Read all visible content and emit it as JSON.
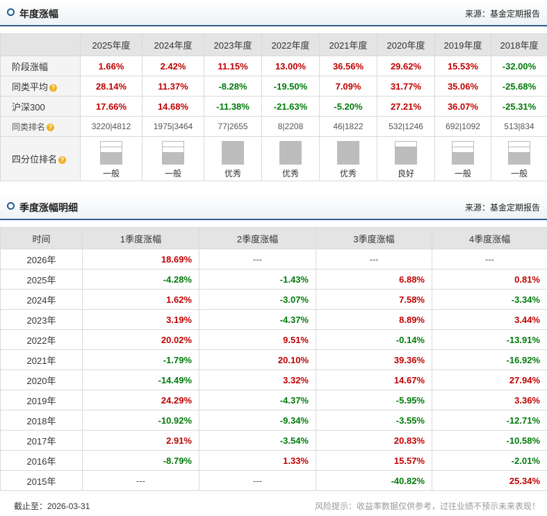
{
  "annual_section": {
    "title": "年度涨幅",
    "source": "来源：基金定期报告"
  },
  "annual": {
    "years": [
      "2025年度",
      "2024年度",
      "2023年度",
      "2022年度",
      "2021年度",
      "2020年度",
      "2019年度",
      "2018年度"
    ],
    "rows": [
      {
        "label": "阶段涨幅",
        "help": false,
        "values": [
          "1.66%",
          "2.42%",
          "11.15%",
          "13.00%",
          "36.56%",
          "29.62%",
          "15.53%",
          "-32.00%"
        ]
      },
      {
        "label": "同类平均",
        "help": true,
        "values": [
          "28.14%",
          "11.37%",
          "-8.28%",
          "-19.50%",
          "7.09%",
          "31.77%",
          "35.06%",
          "-25.68%"
        ]
      },
      {
        "label": "沪深300",
        "help": false,
        "values": [
          "17.66%",
          "14.68%",
          "-11.38%",
          "-21.63%",
          "-5.20%",
          "27.21%",
          "36.07%",
          "-25.31%"
        ]
      }
    ],
    "rank_row": {
      "label": "同类排名",
      "values": [
        "3220|4812",
        "1975|3464",
        "77|2655",
        "8|2208",
        "46|1822",
        "532|1246",
        "692|1092",
        "513|834"
      ]
    },
    "quartile_row": {
      "label": "四分位排名",
      "levels": [
        2,
        2,
        4,
        4,
        4,
        3,
        2,
        2
      ],
      "labels": [
        "一般",
        "一般",
        "优秀",
        "优秀",
        "优秀",
        "良好",
        "一般",
        "一般"
      ]
    }
  },
  "quarterly_section": {
    "title": "季度涨幅明细",
    "source": "来源：基金定期报告"
  },
  "quarterly": {
    "headers": [
      "时间",
      "1季度涨幅",
      "2季度涨幅",
      "3季度涨幅",
      "4季度涨幅"
    ],
    "rows": [
      {
        "year": "2026年",
        "values": [
          "18.69%",
          "---",
          "---",
          "---"
        ]
      },
      {
        "year": "2025年",
        "values": [
          "-4.28%",
          "-1.43%",
          "6.88%",
          "0.81%"
        ]
      },
      {
        "year": "2024年",
        "values": [
          "1.62%",
          "-3.07%",
          "7.58%",
          "-3.34%"
        ]
      },
      {
        "year": "2023年",
        "values": [
          "3.19%",
          "-4.37%",
          "8.89%",
          "3.44%"
        ]
      },
      {
        "year": "2022年",
        "values": [
          "20.02%",
          "9.51%",
          "-0.14%",
          "-13.91%"
        ]
      },
      {
        "year": "2021年",
        "values": [
          "-1.79%",
          "20.10%",
          "39.36%",
          "-16.92%"
        ]
      },
      {
        "year": "2020年",
        "values": [
          "-14.49%",
          "3.32%",
          "14.67%",
          "27.94%"
        ]
      },
      {
        "year": "2019年",
        "values": [
          "24.29%",
          "-4.37%",
          "-5.95%",
          "3.36%"
        ]
      },
      {
        "year": "2018年",
        "values": [
          "-10.92%",
          "-9.34%",
          "-3.55%",
          "-12.71%"
        ]
      },
      {
        "year": "2017年",
        "values": [
          "2.91%",
          "-3.54%",
          "20.83%",
          "-10.58%"
        ]
      },
      {
        "year": "2016年",
        "values": [
          "-8.79%",
          "1.33%",
          "15.57%",
          "-2.01%"
        ]
      },
      {
        "year": "2015年",
        "values": [
          "---",
          "---",
          "-40.82%",
          "25.34%"
        ]
      }
    ]
  },
  "footer": {
    "as_of": "截止至：2026-03-31",
    "risk": "风险提示：收益率数据仅供参考，过往业绩不预示未来表现！"
  },
  "colors": {
    "positive": "#c00000",
    "negative": "#007a0a",
    "accent": "#2e5c8a"
  },
  "icons": {
    "section": "circle-bullet-icon",
    "help": "question-mark-icon"
  }
}
